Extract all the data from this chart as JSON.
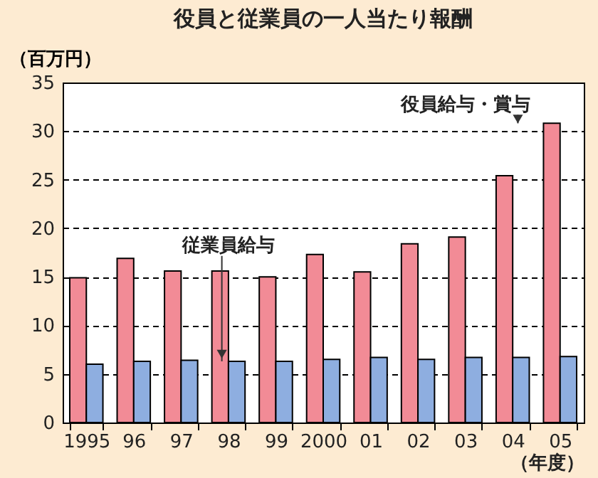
{
  "chart_data": {
    "type": "bar",
    "title": "役員と従業員の一人当たり報酬",
    "ylabel": "（百万円）",
    "xlabel": "（年度）",
    "categories": [
      "1995",
      "96",
      "97",
      "98",
      "99",
      "2000",
      "01",
      "02",
      "03",
      "04",
      "05"
    ],
    "series": [
      {
        "name": "役員給与・賞与",
        "color": "#f28b96",
        "values": [
          14.9,
          16.9,
          15.6,
          15.6,
          15.0,
          17.3,
          15.5,
          18.4,
          19.1,
          25.4,
          30.8
        ]
      },
      {
        "name": "従業員給与",
        "color": "#8eaee0",
        "values": [
          6.0,
          6.3,
          6.4,
          6.3,
          6.3,
          6.5,
          6.7,
          6.5,
          6.7,
          6.7,
          6.8
        ]
      }
    ],
    "ylim": [
      0,
      35
    ],
    "yticks": [
      0,
      5,
      10,
      15,
      20,
      25,
      30,
      35
    ],
    "grid": "y",
    "legend": false
  }
}
